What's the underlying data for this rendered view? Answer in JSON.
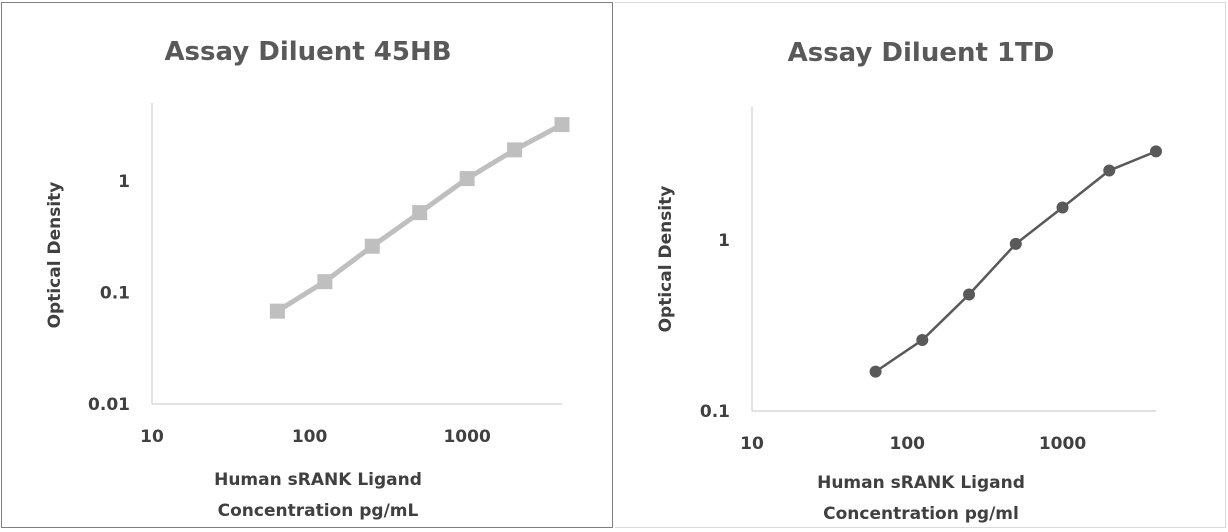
{
  "chart_data": [
    {
      "type": "line",
      "title": "Assay Diluent 45HB",
      "xlabel": [
        "Human sRANK Ligand",
        "Concentration pg/mL"
      ],
      "ylabel": "Optical Density",
      "xscale": "log",
      "yscale": "log",
      "xlim": [
        10,
        4000
      ],
      "ylim": [
        0.01,
        5
      ],
      "x_ticks": [
        {
          "value": 10,
          "label": "10"
        },
        {
          "value": 100,
          "label": "100"
        },
        {
          "value": 1000,
          "label": "1000"
        }
      ],
      "y_ticks": [
        {
          "value": 0.01,
          "label": "0.01"
        },
        {
          "value": 0.1,
          "label": "0.1"
        },
        {
          "value": 1,
          "label": "1"
        }
      ],
      "grid": false,
      "series": [
        {
          "color": "#bfbfbf",
          "marker": "square",
          "x": [
            62.5,
            125,
            250,
            500,
            1000,
            2000,
            4000
          ],
          "y": [
            0.068,
            0.125,
            0.26,
            0.52,
            1.05,
            1.9,
            3.2
          ]
        }
      ]
    },
    {
      "type": "line",
      "title": "Assay Diluent 1TD",
      "xlabel": [
        "Human sRANK Ligand",
        "Concentration pg/ml"
      ],
      "ylabel": "Optical Density",
      "xscale": "log",
      "yscale": "log",
      "xlim": [
        10,
        4000
      ],
      "ylim": [
        0.1,
        6
      ],
      "x_ticks": [
        {
          "value": 10,
          "label": "10"
        },
        {
          "value": 100,
          "label": "100"
        },
        {
          "value": 1000,
          "label": "1000"
        }
      ],
      "y_ticks": [
        {
          "value": 0.1,
          "label": "0.1"
        },
        {
          "value": 1,
          "label": "1"
        }
      ],
      "grid": false,
      "series": [
        {
          "color": "#595959",
          "marker": "circle",
          "x": [
            62.5,
            125,
            250,
            500,
            1000,
            2000,
            4000
          ],
          "y": [
            0.17,
            0.26,
            0.48,
            0.95,
            1.55,
            2.55,
            3.3
          ]
        }
      ]
    }
  ]
}
